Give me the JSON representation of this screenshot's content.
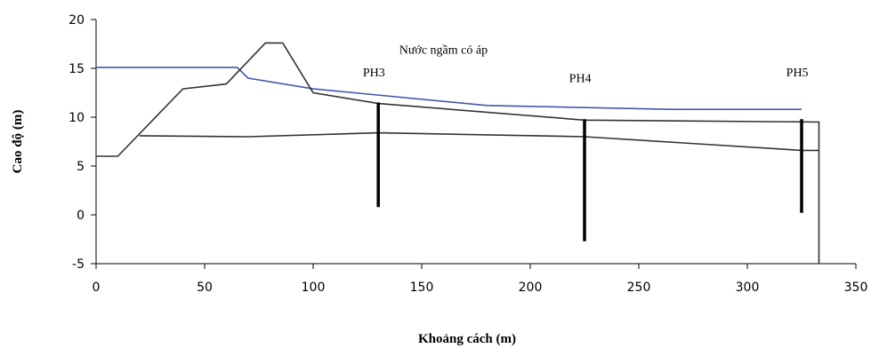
{
  "chart_data": {
    "type": "line",
    "xlabel": "Khoảng cách (m)",
    "ylabel": "Cao độ (m)",
    "xlim": [
      0,
      350
    ],
    "ylim": [
      -5,
      20
    ],
    "xticks": [
      0,
      50,
      100,
      150,
      200,
      250,
      300,
      350
    ],
    "yticks": [
      -5,
      0,
      5,
      10,
      15,
      20
    ],
    "grid": false,
    "series": [
      {
        "color": "#4455aa",
        "points": [
          [
            0,
            15.1
          ],
          [
            65,
            15.1
          ],
          [
            70,
            14.0
          ],
          [
            100,
            12.9
          ],
          [
            180,
            11.2
          ],
          [
            265,
            10.8
          ],
          [
            325,
            10.8
          ]
        ]
      },
      {
        "color": "#333333",
        "points": [
          [
            0,
            6.0
          ],
          [
            10,
            6.0
          ],
          [
            40,
            12.9
          ],
          [
            60,
            13.4
          ],
          [
            78,
            17.6
          ],
          [
            86,
            17.6
          ],
          [
            100,
            12.5
          ],
          [
            130,
            11.4
          ],
          [
            225,
            9.7
          ],
          [
            333,
            9.5
          ],
          [
            333,
            -5.0
          ]
        ]
      },
      {
        "color": "#333333",
        "points": [
          [
            20,
            8.1
          ],
          [
            70,
            8.0
          ],
          [
            130,
            8.4
          ],
          [
            225,
            8.0
          ],
          [
            325,
            6.6
          ],
          [
            333,
            6.6
          ]
        ]
      }
    ],
    "boreholes": [
      {
        "label": "PH3",
        "x": 130,
        "top": 11.5,
        "bottom": 0.8,
        "label_x": 128,
        "label_y": 14.2
      },
      {
        "label": "PH4",
        "x": 225,
        "top": 9.8,
        "bottom": -2.7,
        "label_x": 223,
        "label_y": 13.6
      },
      {
        "label": "PH5",
        "x": 325,
        "top": 9.8,
        "bottom": 0.2,
        "label_x": 323,
        "label_y": 14.2
      }
    ],
    "annotations": [
      {
        "text": "Nước ngầm có áp",
        "x": 160,
        "y": 16.5
      }
    ]
  }
}
